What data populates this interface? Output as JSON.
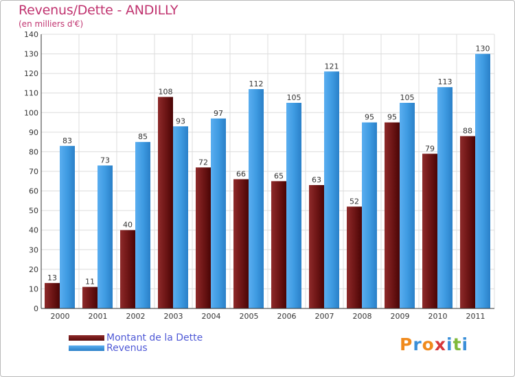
{
  "header": {
    "title": "Revenus/Dette - ANDILLY",
    "subtitle": "(en milliers d'€)"
  },
  "logo": {
    "letters": [
      "P",
      "r",
      "o",
      "x",
      "i",
      "t",
      "i"
    ],
    "colors": [
      "#f08a1c",
      "#3a8fd8",
      "#f08a1c",
      "#d6383a",
      "#3a8fd8",
      "#7fb93a",
      "#3a8fd8"
    ]
  },
  "chart_data": {
    "type": "bar",
    "title": "Revenus/Dette - ANDILLY",
    "subtitle": "(en milliers d'€)",
    "categories": [
      "2000",
      "2001",
      "2002",
      "2003",
      "2004",
      "2005",
      "2006",
      "2007",
      "2008",
      "2009",
      "2010",
      "2011"
    ],
    "series": [
      {
        "name": "Montant de la Dette",
        "color": "#7a1616",
        "values": [
          13,
          11,
          40,
          108,
          72,
          66,
          65,
          63,
          52,
          95,
          79,
          88
        ]
      },
      {
        "name": "Revenus",
        "color": "#3d9be0",
        "values": [
          83,
          73,
          85,
          93,
          97,
          112,
          105,
          121,
          95,
          105,
          113,
          130
        ]
      }
    ],
    "ylim": [
      0,
      140
    ],
    "yticks": [
      0,
      10,
      20,
      30,
      40,
      50,
      60,
      70,
      80,
      90,
      100,
      110,
      120,
      130,
      140
    ],
    "grid": true,
    "legend_position": "bottom-left"
  }
}
